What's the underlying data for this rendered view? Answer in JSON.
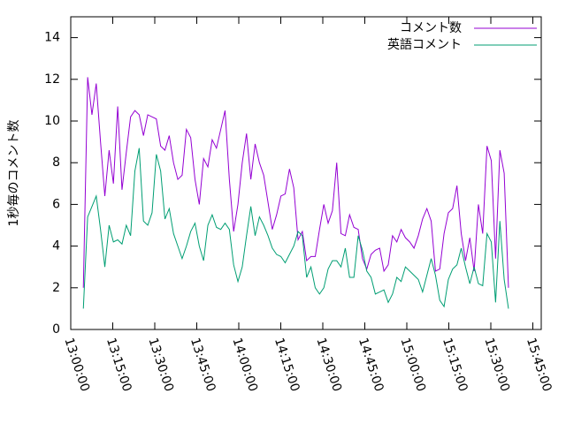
{
  "chart_data": {
    "type": "line",
    "ylabel": "1秒毎のコメント数",
    "x": [
      "13:04:30",
      "13:06:02",
      "13:07:34",
      "13:09:06",
      "13:10:38",
      "13:12:10",
      "13:13:42",
      "13:15:14",
      "13:16:46",
      "13:18:18",
      "13:19:50",
      "13:21:22",
      "13:22:54",
      "13:24:26",
      "13:25:58",
      "13:27:30",
      "13:29:02",
      "13:30:34",
      "13:32:06",
      "13:33:38",
      "13:35:10",
      "13:36:42",
      "13:38:14",
      "13:39:46",
      "13:41:18",
      "13:42:50",
      "13:44:22",
      "13:45:54",
      "13:47:26",
      "13:48:58",
      "13:50:30",
      "13:52:02",
      "13:53:34",
      "13:55:06",
      "13:56:38",
      "13:58:10",
      "13:59:42",
      "14:01:14",
      "14:02:46",
      "14:04:18",
      "14:05:50",
      "14:07:22",
      "14:08:54",
      "14:10:26",
      "14:11:58",
      "14:13:30",
      "14:15:02",
      "14:16:34",
      "14:18:06",
      "14:19:38",
      "14:21:10",
      "14:22:42",
      "14:24:14",
      "14:25:46",
      "14:27:18",
      "14:28:50",
      "14:30:22",
      "14:31:54",
      "14:33:26",
      "14:34:58",
      "14:36:30",
      "14:38:02",
      "14:39:34",
      "14:41:06",
      "14:42:38",
      "14:44:10",
      "14:45:42",
      "14:47:14",
      "14:48:46",
      "14:50:18",
      "14:51:50",
      "14:53:22",
      "14:54:54",
      "14:56:26",
      "14:57:58",
      "14:59:30",
      "15:01:02",
      "15:02:34",
      "15:04:06",
      "15:05:38",
      "15:07:10",
      "15:08:42",
      "15:10:14",
      "15:11:46",
      "15:13:18",
      "15:14:50",
      "15:16:22",
      "15:17:54",
      "15:19:26",
      "15:20:58",
      "15:22:30",
      "15:24:02",
      "15:25:34",
      "15:27:06",
      "15:28:38",
      "15:30:10",
      "15:31:42",
      "15:33:14",
      "15:34:46",
      "15:36:18"
    ],
    "series": [
      {
        "name": "コメント数",
        "color": "#9400d3",
        "values": [
          2,
          12.1,
          10.3,
          11.8,
          9,
          6.4,
          8.6,
          7,
          10.7,
          6.7,
          8.5,
          10.2,
          10.5,
          10.3,
          9.3,
          10.3,
          10.2,
          10.1,
          8.8,
          8.6,
          9.3,
          8,
          7.2,
          7.4,
          9.6,
          9.2,
          7.2,
          6,
          8.2,
          7.8,
          9.1,
          8.7,
          9.6,
          10.5,
          7.2,
          4.7,
          6,
          8,
          9.4,
          7.2,
          8.9,
          8,
          7.4,
          6.1,
          4.8,
          5.5,
          6.4,
          6.5,
          7.7,
          6.8,
          4.3,
          4.7,
          3.3,
          3.5,
          3.5,
          4.8,
          6,
          5.1,
          5.7,
          8,
          4.6,
          4.5,
          5.5,
          4.9,
          4.8,
          3.4,
          2.9,
          3.6,
          3.8,
          3.9,
          2.8,
          3.1,
          4.5,
          4.2,
          4.8,
          4.4,
          4.2,
          3.9,
          4.5,
          5.3,
          5.8,
          5.2,
          2.8,
          2.9,
          4.6,
          5.6,
          5.8,
          6.9,
          4.6,
          3.3,
          4.4,
          2.8,
          6,
          4.6,
          8.8,
          8.1,
          3.4,
          8.6,
          7.5,
          2
        ]
      },
      {
        "name": "英語コメント",
        "color": "#009e73",
        "values": [
          1,
          5.4,
          5.9,
          6.4,
          4.8,
          3,
          5,
          4.2,
          4.3,
          4.1,
          5,
          4.5,
          7.6,
          8.7,
          5.2,
          5,
          5.6,
          8.4,
          7.6,
          5.3,
          5.8,
          4.6,
          4,
          3.4,
          4,
          4.7,
          5.1,
          4,
          3.3,
          5,
          5.5,
          4.9,
          4.8,
          5.1,
          4.8,
          3.1,
          2.3,
          3,
          4.5,
          5.9,
          4.5,
          5.4,
          5,
          4.5,
          3.9,
          3.6,
          3.5,
          3.2,
          3.6,
          4,
          4.7,
          4.5,
          2.5,
          3,
          2,
          1.7,
          2,
          2.9,
          3.3,
          3.3,
          3,
          3.9,
          2.5,
          2.5,
          4.5,
          3.8,
          2.8,
          2.5,
          1.7,
          1.8,
          1.9,
          1.3,
          1.7,
          2.5,
          2.3,
          3,
          2.8,
          2.6,
          2.4,
          1.8,
          2.6,
          3.4,
          2.6,
          1.4,
          1.1,
          2.4,
          2.9,
          3.1,
          3.9,
          3,
          2.2,
          3,
          2.2,
          2.1,
          4.6,
          4.2,
          1.3,
          5.2,
          2.4,
          1
        ]
      }
    ],
    "xlim": [
      "13:00:00",
      "15:48:00"
    ],
    "xticks": [
      "13:00:00",
      "13:15:00",
      "13:30:00",
      "13:45:00",
      "14:00:00",
      "14:15:00",
      "14:30:00",
      "14:45:00",
      "15:00:00",
      "15:15:00",
      "15:30:00",
      "15:45:00"
    ],
    "ylim": [
      0,
      15
    ],
    "yticks": [
      0,
      2,
      4,
      6,
      8,
      10,
      12,
      14
    ],
    "grid": false,
    "legend": "top-right"
  }
}
